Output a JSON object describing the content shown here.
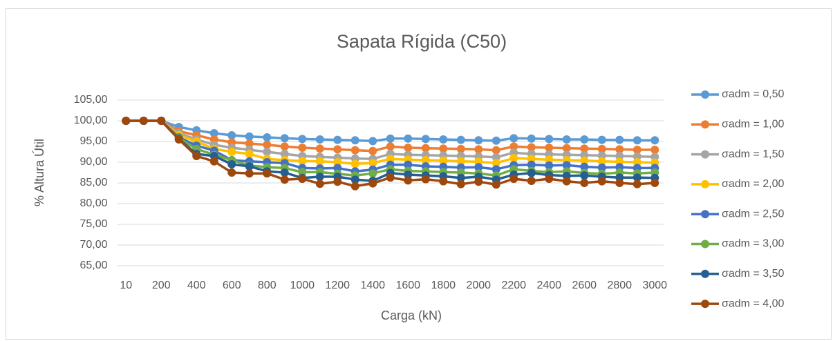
{
  "chart_data": {
    "type": "line",
    "title": "Sapata Rígida (C50)",
    "x_label": "Carga (kN)",
    "y_label": "% Altura Útil",
    "categories": [
      "10",
      null,
      "200",
      null,
      "400",
      null,
      "600",
      null,
      "800",
      null,
      "1000",
      null,
      "1200",
      null,
      "1400",
      null,
      "1600",
      null,
      "1800",
      null,
      "2000",
      null,
      "2200",
      null,
      "2400",
      null,
      "2600",
      null,
      "2800",
      null,
      "3000"
    ],
    "ylim": [
      65,
      105
    ],
    "yticks": [
      {
        "value": 65,
        "label": "65,00"
      },
      {
        "value": 70,
        "label": "70,00"
      },
      {
        "value": 75,
        "label": "75,00"
      },
      {
        "value": 80,
        "label": "80,00"
      },
      {
        "value": 85,
        "label": "85,00"
      },
      {
        "value": 90,
        "label": "90,00"
      },
      {
        "value": 95,
        "label": "95,00"
      },
      {
        "value": 100,
        "label": "100,00"
      },
      {
        "value": 105,
        "label": "105,00"
      }
    ],
    "grid": true,
    "legend": "right",
    "series": [
      {
        "name": "σadm = 0,50",
        "color": "#5b9bd5",
        "values": [
          100,
          100,
          100,
          98.5,
          97.7,
          97.0,
          96.5,
          96.2,
          96.0,
          95.8,
          95.6,
          95.5,
          95.4,
          95.3,
          95.1,
          95.7,
          95.7,
          95.6,
          95.5,
          95.4,
          95.3,
          95.2,
          95.8,
          95.7,
          95.6,
          95.5,
          95.5,
          95.4,
          95.4,
          95.3,
          95.3
        ]
      },
      {
        "name": "σadm = 1,00",
        "color": "#ed7d31",
        "values": [
          100,
          100,
          100,
          97.5,
          96.5,
          95.5,
          94.8,
          94.5,
          94.2,
          93.8,
          93.5,
          93.3,
          93.1,
          92.9,
          92.7,
          93.8,
          93.5,
          93.4,
          93.3,
          93.2,
          93.1,
          92.9,
          93.8,
          93.6,
          93.5,
          93.4,
          93.3,
          93.2,
          93.1,
          93.0,
          93.0
        ]
      },
      {
        "name": "σadm = 1,50",
        "color": "#a5a5a5",
        "values": [
          100,
          100,
          100,
          97,
          95.5,
          94.2,
          93.5,
          93,
          92.5,
          92,
          91.5,
          91.3,
          91.1,
          90.9,
          90.8,
          92,
          91.8,
          91.7,
          91.6,
          91.5,
          91.4,
          91.2,
          92.3,
          92.0,
          91.9,
          91.8,
          91.7,
          91.6,
          91.5,
          91.4,
          91.3
        ]
      },
      {
        "name": "σadm = 2,00",
        "color": "#ffc000",
        "values": [
          100,
          100,
          100,
          96.5,
          95,
          93.2,
          92.5,
          92,
          90.8,
          90.5,
          90.3,
          90.2,
          90,
          89.6,
          89.8,
          90.8,
          90.6,
          90.5,
          90.4,
          90.2,
          90.1,
          89.8,
          91,
          90.8,
          90.6,
          90.5,
          90.4,
          90.2,
          90.1,
          90,
          89.9
        ]
      },
      {
        "name": "σadm = 2,50",
        "color": "#4472c4",
        "values": [
          100,
          100,
          100,
          96,
          94,
          92.8,
          90.5,
          90.2,
          90,
          89.8,
          88.6,
          88.5,
          88.6,
          87.8,
          88.2,
          89.4,
          89.4,
          89,
          88.9,
          88.7,
          88.8,
          88.3,
          89.3,
          89.4,
          89.2,
          89.3,
          88.9,
          88.7,
          88.8,
          88.6,
          88.6
        ]
      },
      {
        "name": "σadm = 3,00",
        "color": "#70ad47",
        "values": [
          100,
          100,
          100,
          95.8,
          93.2,
          91.8,
          90.5,
          89.2,
          88.8,
          88.6,
          87.6,
          87.6,
          87.2,
          86.8,
          87.3,
          88.3,
          87.9,
          87.8,
          87.6,
          87.5,
          87.3,
          86.8,
          88.3,
          87.9,
          87.6,
          87.8,
          87.4,
          87.2,
          87.5,
          87.3,
          87.5
        ]
      },
      {
        "name": "σadm = 3,50",
        "color": "#255e91",
        "values": [
          100,
          100,
          100,
          95.6,
          92,
          91.5,
          89.5,
          89,
          87.8,
          87.5,
          86.2,
          86.5,
          86.5,
          85.8,
          85.5,
          87.4,
          87,
          86.8,
          86.6,
          86.2,
          86.5,
          85.8,
          87,
          87.4,
          86.9,
          86.7,
          86.8,
          86.5,
          86.3,
          86.3,
          86.2
        ]
      },
      {
        "name": "σadm = 4,00",
        "color": "#9e480e",
        "values": [
          100,
          100,
          100,
          95.5,
          91.5,
          90.2,
          87.5,
          87.3,
          87.3,
          85.8,
          86.0,
          84.8,
          85.3,
          84.2,
          84.9,
          86.3,
          85.6,
          85.9,
          85.4,
          84.7,
          85.3,
          84.6,
          86,
          85.5,
          86,
          85.4,
          85,
          85.4,
          85,
          84.7,
          85
        ]
      }
    ]
  }
}
